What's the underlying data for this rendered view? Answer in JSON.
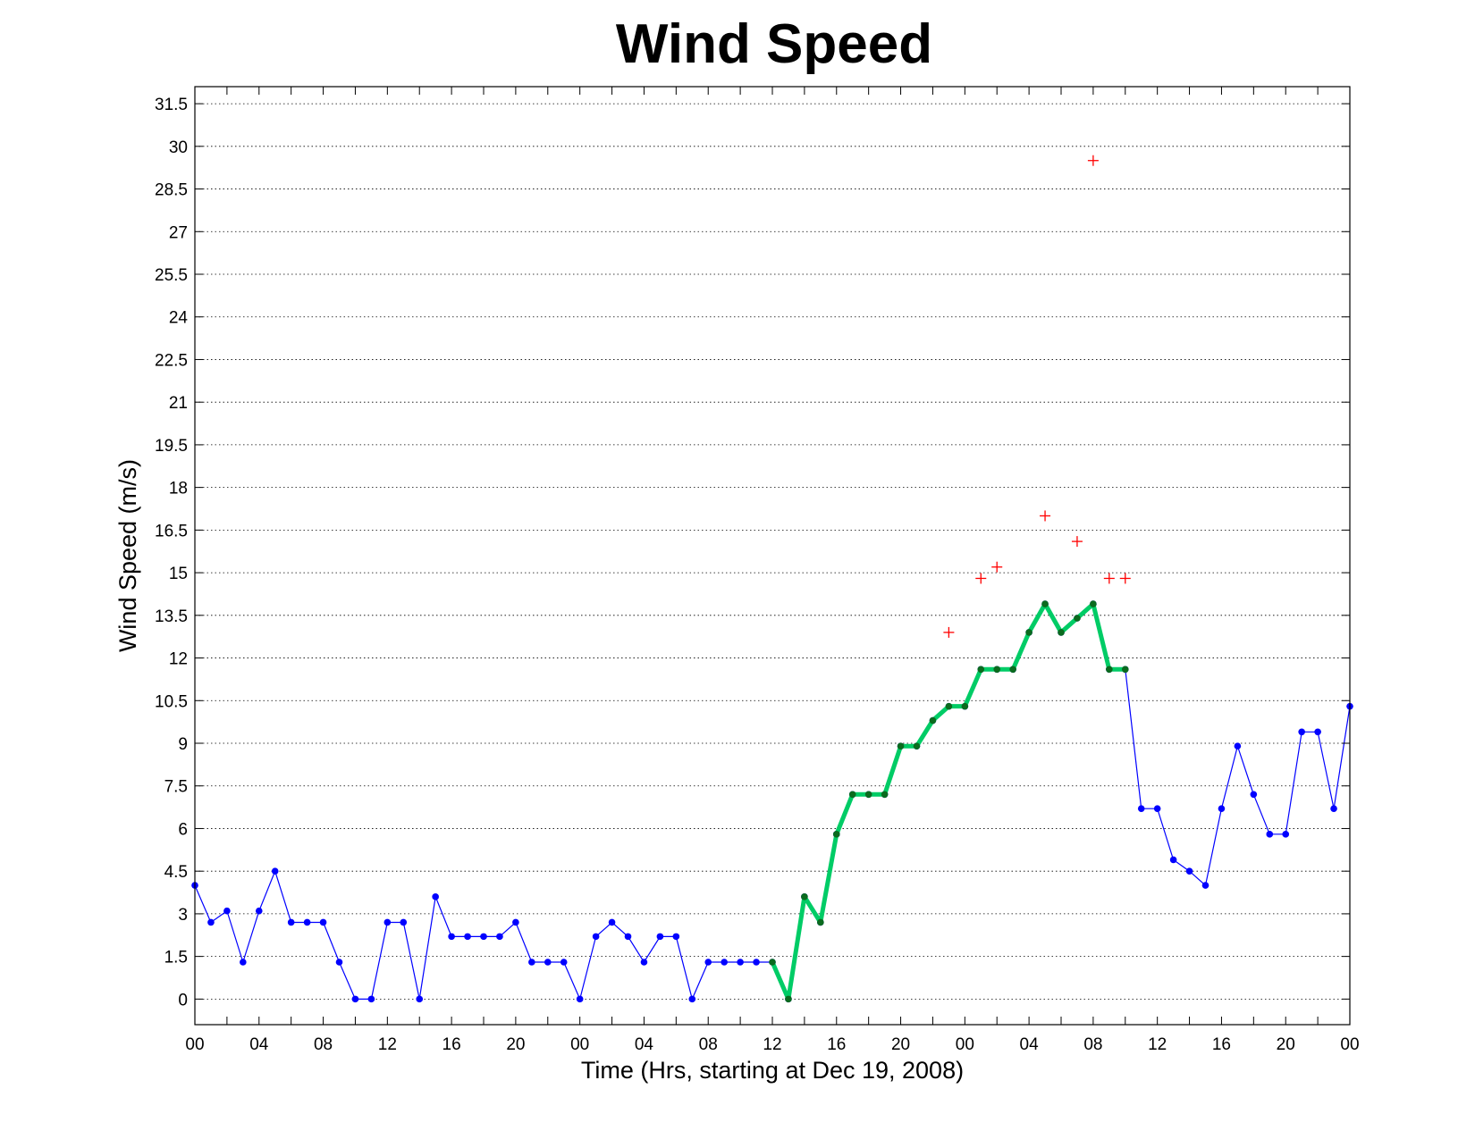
{
  "chart_data": {
    "type": "line",
    "title": "Wind Speed",
    "xlabel": "Time (Hrs, starting at Dec 19, 2008)",
    "ylabel": "Wind Speed (m/s)",
    "ylim": [
      -0.9,
      32.1
    ],
    "xlim": [
      0,
      72
    ],
    "yticks": [
      0,
      1.5,
      3,
      4.5,
      6,
      7.5,
      9,
      10.5,
      12,
      13.5,
      15,
      16.5,
      18,
      19.5,
      21,
      22.5,
      24,
      25.5,
      27,
      28.5,
      30,
      31.5
    ],
    "ytick_labels": [
      "0",
      "1.5",
      "3",
      "4.5",
      "6",
      "7.5",
      "9",
      "10.5",
      "12",
      "13.5",
      "15",
      "16.5",
      "18",
      "19.5",
      "21",
      "22.5",
      "24",
      "25.5",
      "27",
      "28.5",
      "30",
      "31.5"
    ],
    "xticks": [
      0,
      4,
      8,
      12,
      16,
      20,
      24,
      28,
      32,
      36,
      40,
      44,
      48,
      52,
      56,
      60,
      64,
      68,
      72
    ],
    "xtick_labels": [
      "00",
      "04",
      "08",
      "12",
      "16",
      "20",
      "00",
      "04",
      "08",
      "12",
      "16",
      "20",
      "00",
      "04",
      "08",
      "12",
      "16",
      "20",
      "00"
    ],
    "grid": true,
    "series": [
      {
        "color": "#0000ff",
        "style": "thin line with dot markers",
        "x": [
          0,
          1,
          2,
          3,
          4,
          5,
          6,
          7,
          8,
          9,
          10,
          11,
          12,
          13,
          14,
          15,
          16,
          17,
          18,
          19,
          20,
          21,
          22,
          23,
          24,
          25,
          26,
          27,
          28,
          29,
          30,
          31,
          32,
          33,
          34,
          35,
          36,
          37,
          38,
          39,
          40,
          41,
          42,
          43,
          44,
          45,
          46,
          47,
          48,
          49,
          50,
          51,
          52,
          53,
          54,
          55,
          56,
          57,
          58,
          59,
          60,
          61,
          62,
          63,
          64,
          65,
          66,
          67,
          68,
          69,
          70,
          71,
          72
        ],
        "values": [
          4.0,
          2.7,
          3.1,
          1.3,
          3.1,
          4.5,
          2.7,
          2.7,
          2.7,
          1.3,
          0.0,
          0.0,
          2.7,
          2.7,
          0.0,
          3.6,
          2.2,
          2.2,
          2.2,
          2.2,
          2.7,
          1.3,
          1.3,
          1.3,
          0.0,
          2.2,
          2.7,
          2.2,
          1.3,
          2.2,
          2.2,
          0.0,
          1.3,
          1.3,
          1.3,
          1.3,
          1.3,
          0.0,
          3.6,
          2.7,
          5.8,
          7.2,
          7.2,
          7.2,
          8.9,
          8.9,
          9.8,
          10.3,
          10.3,
          11.6,
          11.6,
          11.6,
          12.9,
          13.9,
          12.9,
          13.4,
          13.9,
          11.6,
          11.6,
          6.7,
          6.7,
          4.9,
          4.5,
          4.0,
          6.7,
          8.9,
          7.2,
          5.8,
          5.8,
          9.4,
          9.4,
          6.7,
          10.3
        ]
      },
      {
        "color": "#00cc66",
        "style": "thick line with dark green dot markers",
        "x": [
          36,
          37,
          38,
          39,
          40,
          41,
          42,
          43,
          44,
          45,
          46,
          47,
          48,
          49,
          50,
          51,
          52,
          53,
          54,
          55,
          56,
          57,
          58
        ],
        "values": [
          1.3,
          0.0,
          3.6,
          2.7,
          5.8,
          7.2,
          7.2,
          7.2,
          8.9,
          8.9,
          9.8,
          10.3,
          10.3,
          11.6,
          11.6,
          11.6,
          12.9,
          13.9,
          12.9,
          13.4,
          13.9,
          11.6,
          11.6
        ]
      },
      {
        "color": "#ff0000",
        "style": "plus markers",
        "x": [
          47,
          49,
          50,
          53,
          55,
          56,
          57,
          58
        ],
        "values": [
          12.9,
          14.8,
          15.2,
          17.0,
          16.1,
          29.5,
          14.8,
          14.8
        ]
      }
    ]
  }
}
